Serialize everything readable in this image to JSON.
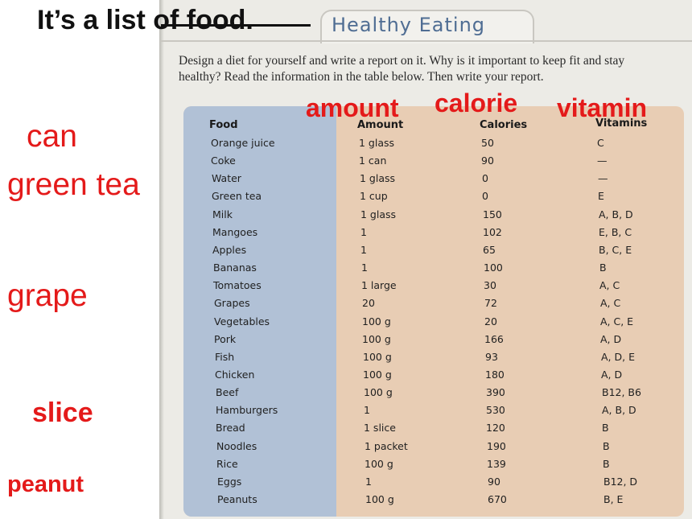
{
  "headline": "It’s a list of food.",
  "section_title": "Healthy Eating",
  "instructions": "Design a diet for yourself and write a report on it. Why is it important to keep fit and stay healthy? Read the information in the table below. Then write your report.",
  "left_words": [
    "can",
    "green tea",
    "grape",
    "slice",
    "peanut"
  ],
  "column_annotations": [
    "amount",
    "calorie",
    "vitamin"
  ],
  "table": {
    "headers": [
      "Food",
      "Amount",
      "Calories",
      "Vitamins"
    ],
    "rows": [
      [
        "Orange juice",
        "1 glass",
        "50",
        "C"
      ],
      [
        "Coke",
        "1 can",
        "90",
        "—"
      ],
      [
        "Water",
        "1 glass",
        "0",
        "—"
      ],
      [
        "Green tea",
        "1 cup",
        "0",
        "E"
      ],
      [
        "Milk",
        "1 glass",
        "150",
        "A, B, D"
      ],
      [
        "Mangoes",
        "1",
        "102",
        "E, B, C"
      ],
      [
        "Apples",
        "1",
        "65",
        "B, C, E"
      ],
      [
        "Bananas",
        "1",
        "100",
        "B"
      ],
      [
        "Tomatoes",
        "1 large",
        "30",
        "A, C"
      ],
      [
        "Grapes",
        "20",
        "72",
        "A, C"
      ],
      [
        "Vegetables",
        "100 g",
        "20",
        "A, C, E"
      ],
      [
        "Pork",
        "100 g",
        "166",
        "A, D"
      ],
      [
        "Fish",
        "100 g",
        "93",
        "A, D, E"
      ],
      [
        "Chicken",
        "100 g",
        "180",
        "A, D"
      ],
      [
        "Beef",
        "100 g",
        "390",
        "B12, B6"
      ],
      [
        "Hamburgers",
        "1",
        "530",
        "A, B, D"
      ],
      [
        "Bread",
        "1 slice",
        "120",
        "B"
      ],
      [
        "Noodles",
        "1 packet",
        "190",
        "B"
      ],
      [
        "Rice",
        "100 g",
        "139",
        "B"
      ],
      [
        "Eggs",
        "1",
        "90",
        "B12, D"
      ],
      [
        "Peanuts",
        "100 g",
        "670",
        "B, E"
      ]
    ]
  }
}
